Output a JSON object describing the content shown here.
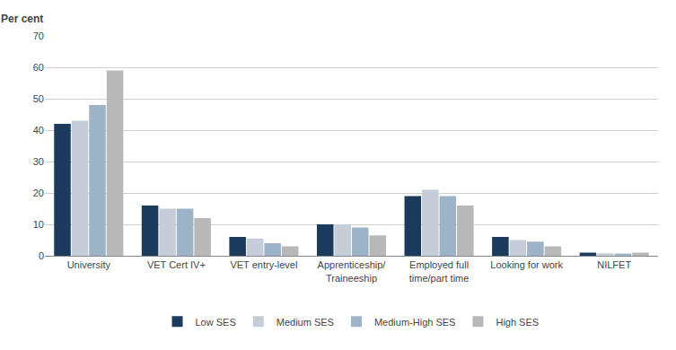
{
  "chart_data": {
    "type": "bar",
    "ylabel": "Per cent",
    "categories": [
      "University",
      "VET Cert IV+",
      "VET entry-level",
      "Apprenticeship/\nTraineeship",
      "Employed full\ntime/part time",
      "Looking for work",
      "NILFET"
    ],
    "series": [
      {
        "name": "Low SES",
        "color": "#1B3A5C",
        "values": [
          42,
          16,
          6,
          10,
          19,
          6,
          1
        ]
      },
      {
        "name": "Medium SES",
        "color": "#C5CDD8",
        "values": [
          43,
          15,
          5.5,
          10,
          21,
          5,
          0.8
        ]
      },
      {
        "name": "Medium-High SES",
        "color": "#9DB3C8",
        "values": [
          48,
          15,
          4,
          9,
          19,
          4.5,
          0.7
        ]
      },
      {
        "name": "High SES",
        "color": "#B8B8B8",
        "values": [
          59,
          12,
          3,
          6.5,
          16,
          3,
          1
        ]
      }
    ],
    "ylim": [
      0,
      70
    ],
    "yticks": [
      0,
      10,
      20,
      30,
      40,
      50,
      60,
      70
    ],
    "grid": true,
    "legend": "bottom"
  }
}
